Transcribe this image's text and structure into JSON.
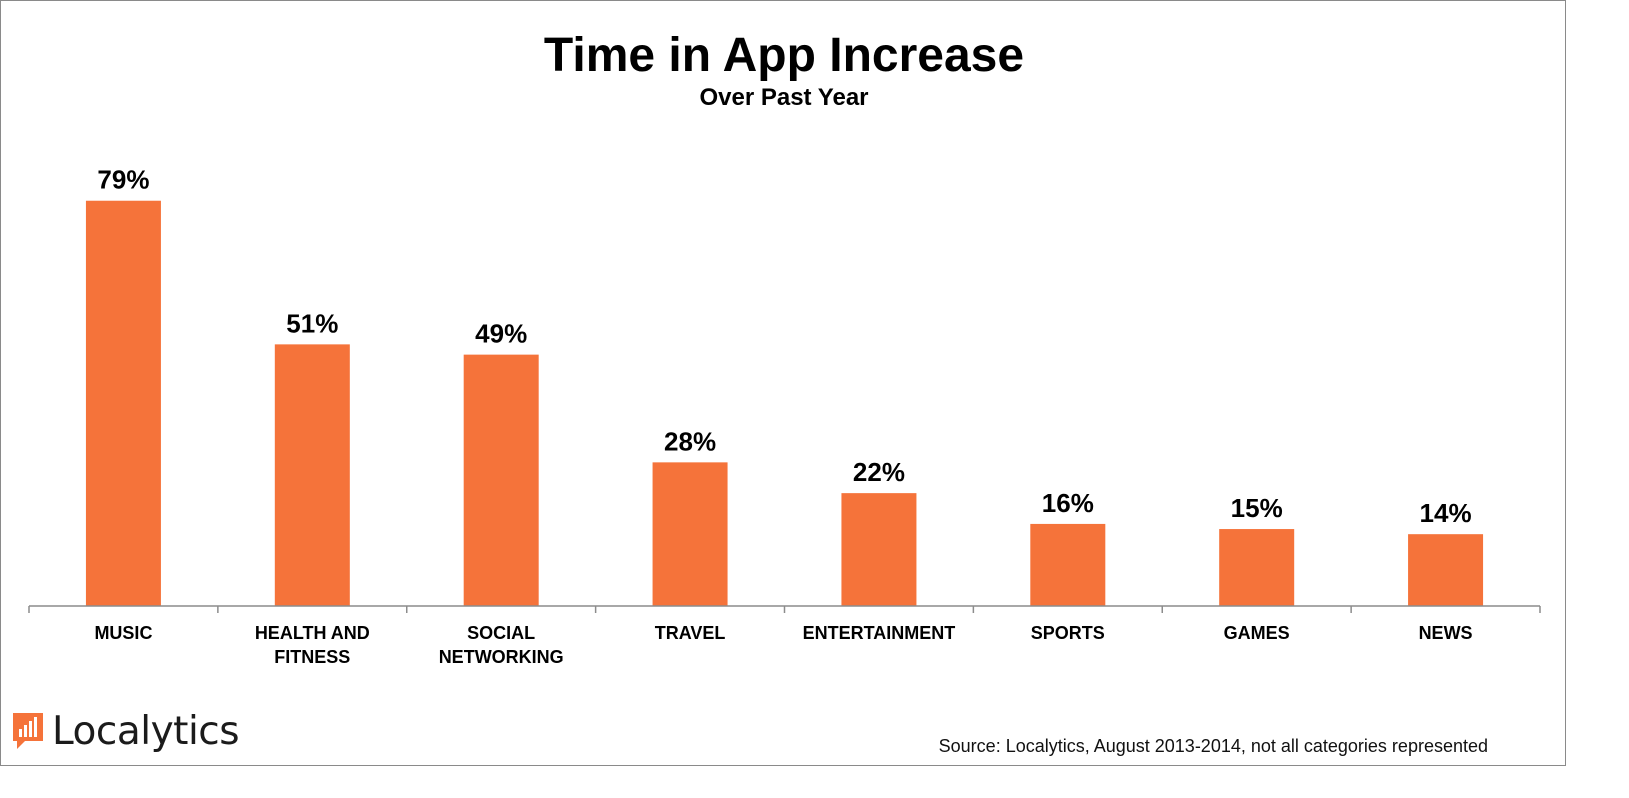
{
  "chart_data": {
    "type": "bar",
    "title": "Time in App Increase",
    "subtitle": "Over Past Year",
    "categories": [
      [
        "MUSIC"
      ],
      [
        "HEALTH AND",
        "FITNESS"
      ],
      [
        "SOCIAL",
        "NETWORKING"
      ],
      [
        "TRAVEL"
      ],
      [
        "ENTERTAINMENT"
      ],
      [
        "SPORTS"
      ],
      [
        "GAMES"
      ],
      [
        "NEWS"
      ]
    ],
    "values": [
      79,
      51,
      49,
      28,
      22,
      16,
      15,
      14
    ],
    "data_labels": [
      "79%",
      "51%",
      "49%",
      "28%",
      "22%",
      "16%",
      "15%",
      "14%"
    ],
    "xlabel": "",
    "ylabel": "",
    "ylim": [
      0,
      100
    ],
    "grid": false,
    "legend": "none",
    "bar_color": "#F5733A"
  },
  "branding": {
    "logo_text": "Localytics",
    "logo_color": "#F5733A"
  },
  "footer": {
    "source": "Source: Localytics, August 2013-2014, not all categories represented"
  }
}
